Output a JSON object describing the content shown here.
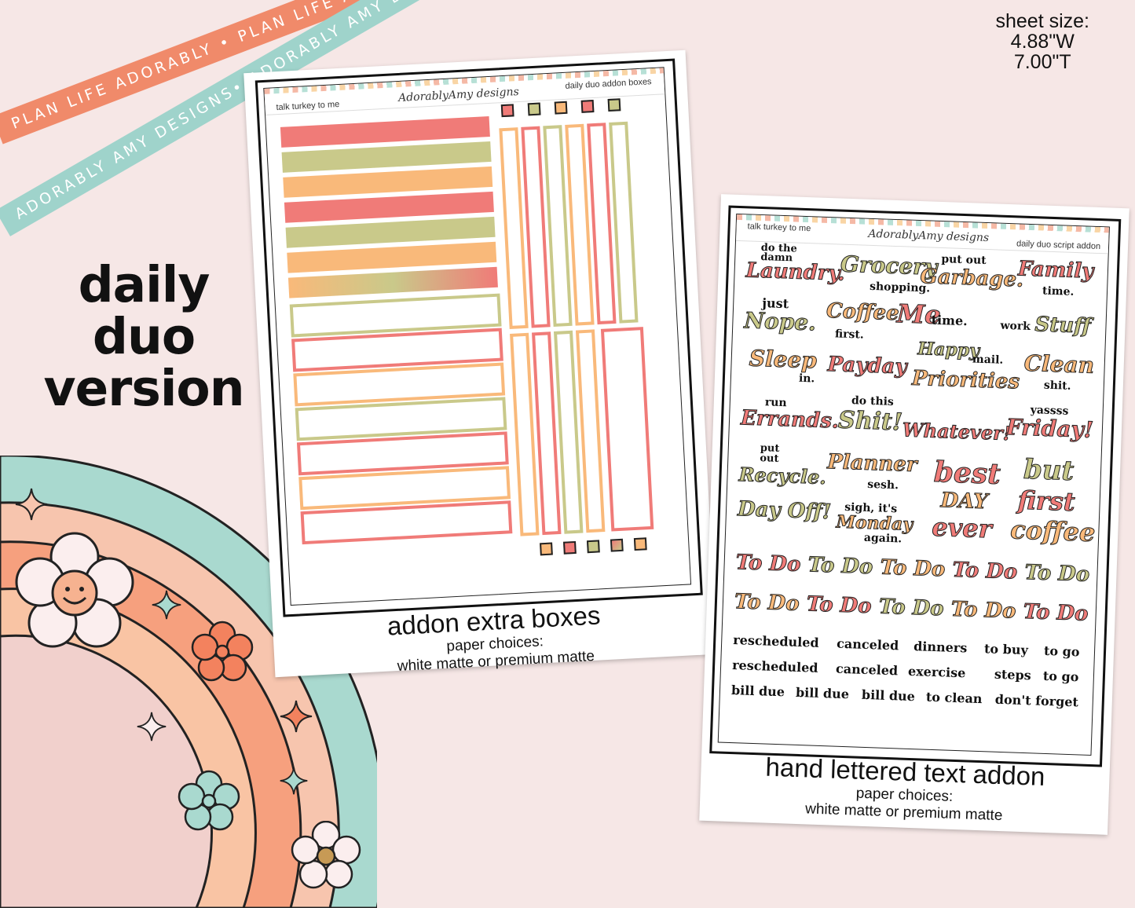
{
  "ribbons": {
    "coral": "PLAN LIFE ADORABLY • PLAN LIFE ADORABLY • PLAN LIFE ADORABLY • PLAN LIFE ADORABLY •",
    "mint": "ADORABLY AMY DESIGNS• ADORABLY AMY DESIGNS• ADORABLY AMY DESIGNS• ADORABLY AMY DESIGNS•"
  },
  "sheet_size": {
    "label": "sheet size:",
    "width": "4.88\"W",
    "height": "7.00\"T"
  },
  "version": {
    "line1": "daily",
    "line2": "duo",
    "line3": "version"
  },
  "sheet_left": {
    "theme": "talk turkey to me",
    "brand": "AdorablyAmy designs",
    "name": "daily duo addon boxes",
    "title": "addon extra boxes",
    "paper_label": "paper choices:",
    "paper_options": "white matte or premium matte"
  },
  "sheet_right": {
    "theme": "talk turkey to me",
    "brand": "AdorablyAmy designs",
    "name": "daily duo script addon",
    "title": "hand lettered text addon",
    "paper_label": "paper choices:",
    "paper_options": "white matte or premium matte",
    "stickers": {
      "laundry_small": "do the damn",
      "laundry": "Laundry.",
      "grocery": "Grocery",
      "grocery_small": "shopping.",
      "garbage_small": "put out",
      "garbage": "Garbage.",
      "family": "Family",
      "family_small": "time.",
      "nope_small": "just",
      "nope": "Nope.",
      "coffee": "Coffee",
      "coffee_small": "first.",
      "me": "Me",
      "me_small": "time.",
      "work_small": "work",
      "work": "Stuff",
      "sleep": "Sleep",
      "sleep_small": "in.",
      "payday": "Payday",
      "happy": "Happy",
      "happy_small": "mail.",
      "priorities": "Priorities",
      "clean": "Clean",
      "clean_small": "shit.",
      "errands_small": "run",
      "errands": "Errands.",
      "shit_small": "do this",
      "shit": "Shit!",
      "whatever": "Whatever!",
      "friday_small": "yassss",
      "friday": "Friday!",
      "recycle_small": "put out",
      "recycle": "Recycle.",
      "planner": "Planner",
      "planner_small": "sesh.",
      "best": "best",
      "best_day": "DAY",
      "best_ever": "ever",
      "but": "but",
      "but_first": "first",
      "but_coffee": "coffee",
      "dayoff": "Day Off!",
      "monday_small": "sigh, it's",
      "monday": "Monday",
      "monday_again": "again.",
      "todo": "To Do",
      "words_row1": [
        "rescheduled",
        "canceled",
        "dinners",
        "to buy",
        "to go"
      ],
      "words_row2": [
        "rescheduled",
        "canceled",
        "exercise",
        "steps",
        "to go"
      ],
      "words_row3": [
        "bill due",
        "bill due",
        "bill due",
        "to clean",
        "don't forget"
      ]
    }
  },
  "colors": {
    "pink": "#f07b78",
    "sage": "#c9c98a",
    "orange": "#f9b97a",
    "coral": "#f08a6a",
    "mint": "#9fd3cb"
  }
}
